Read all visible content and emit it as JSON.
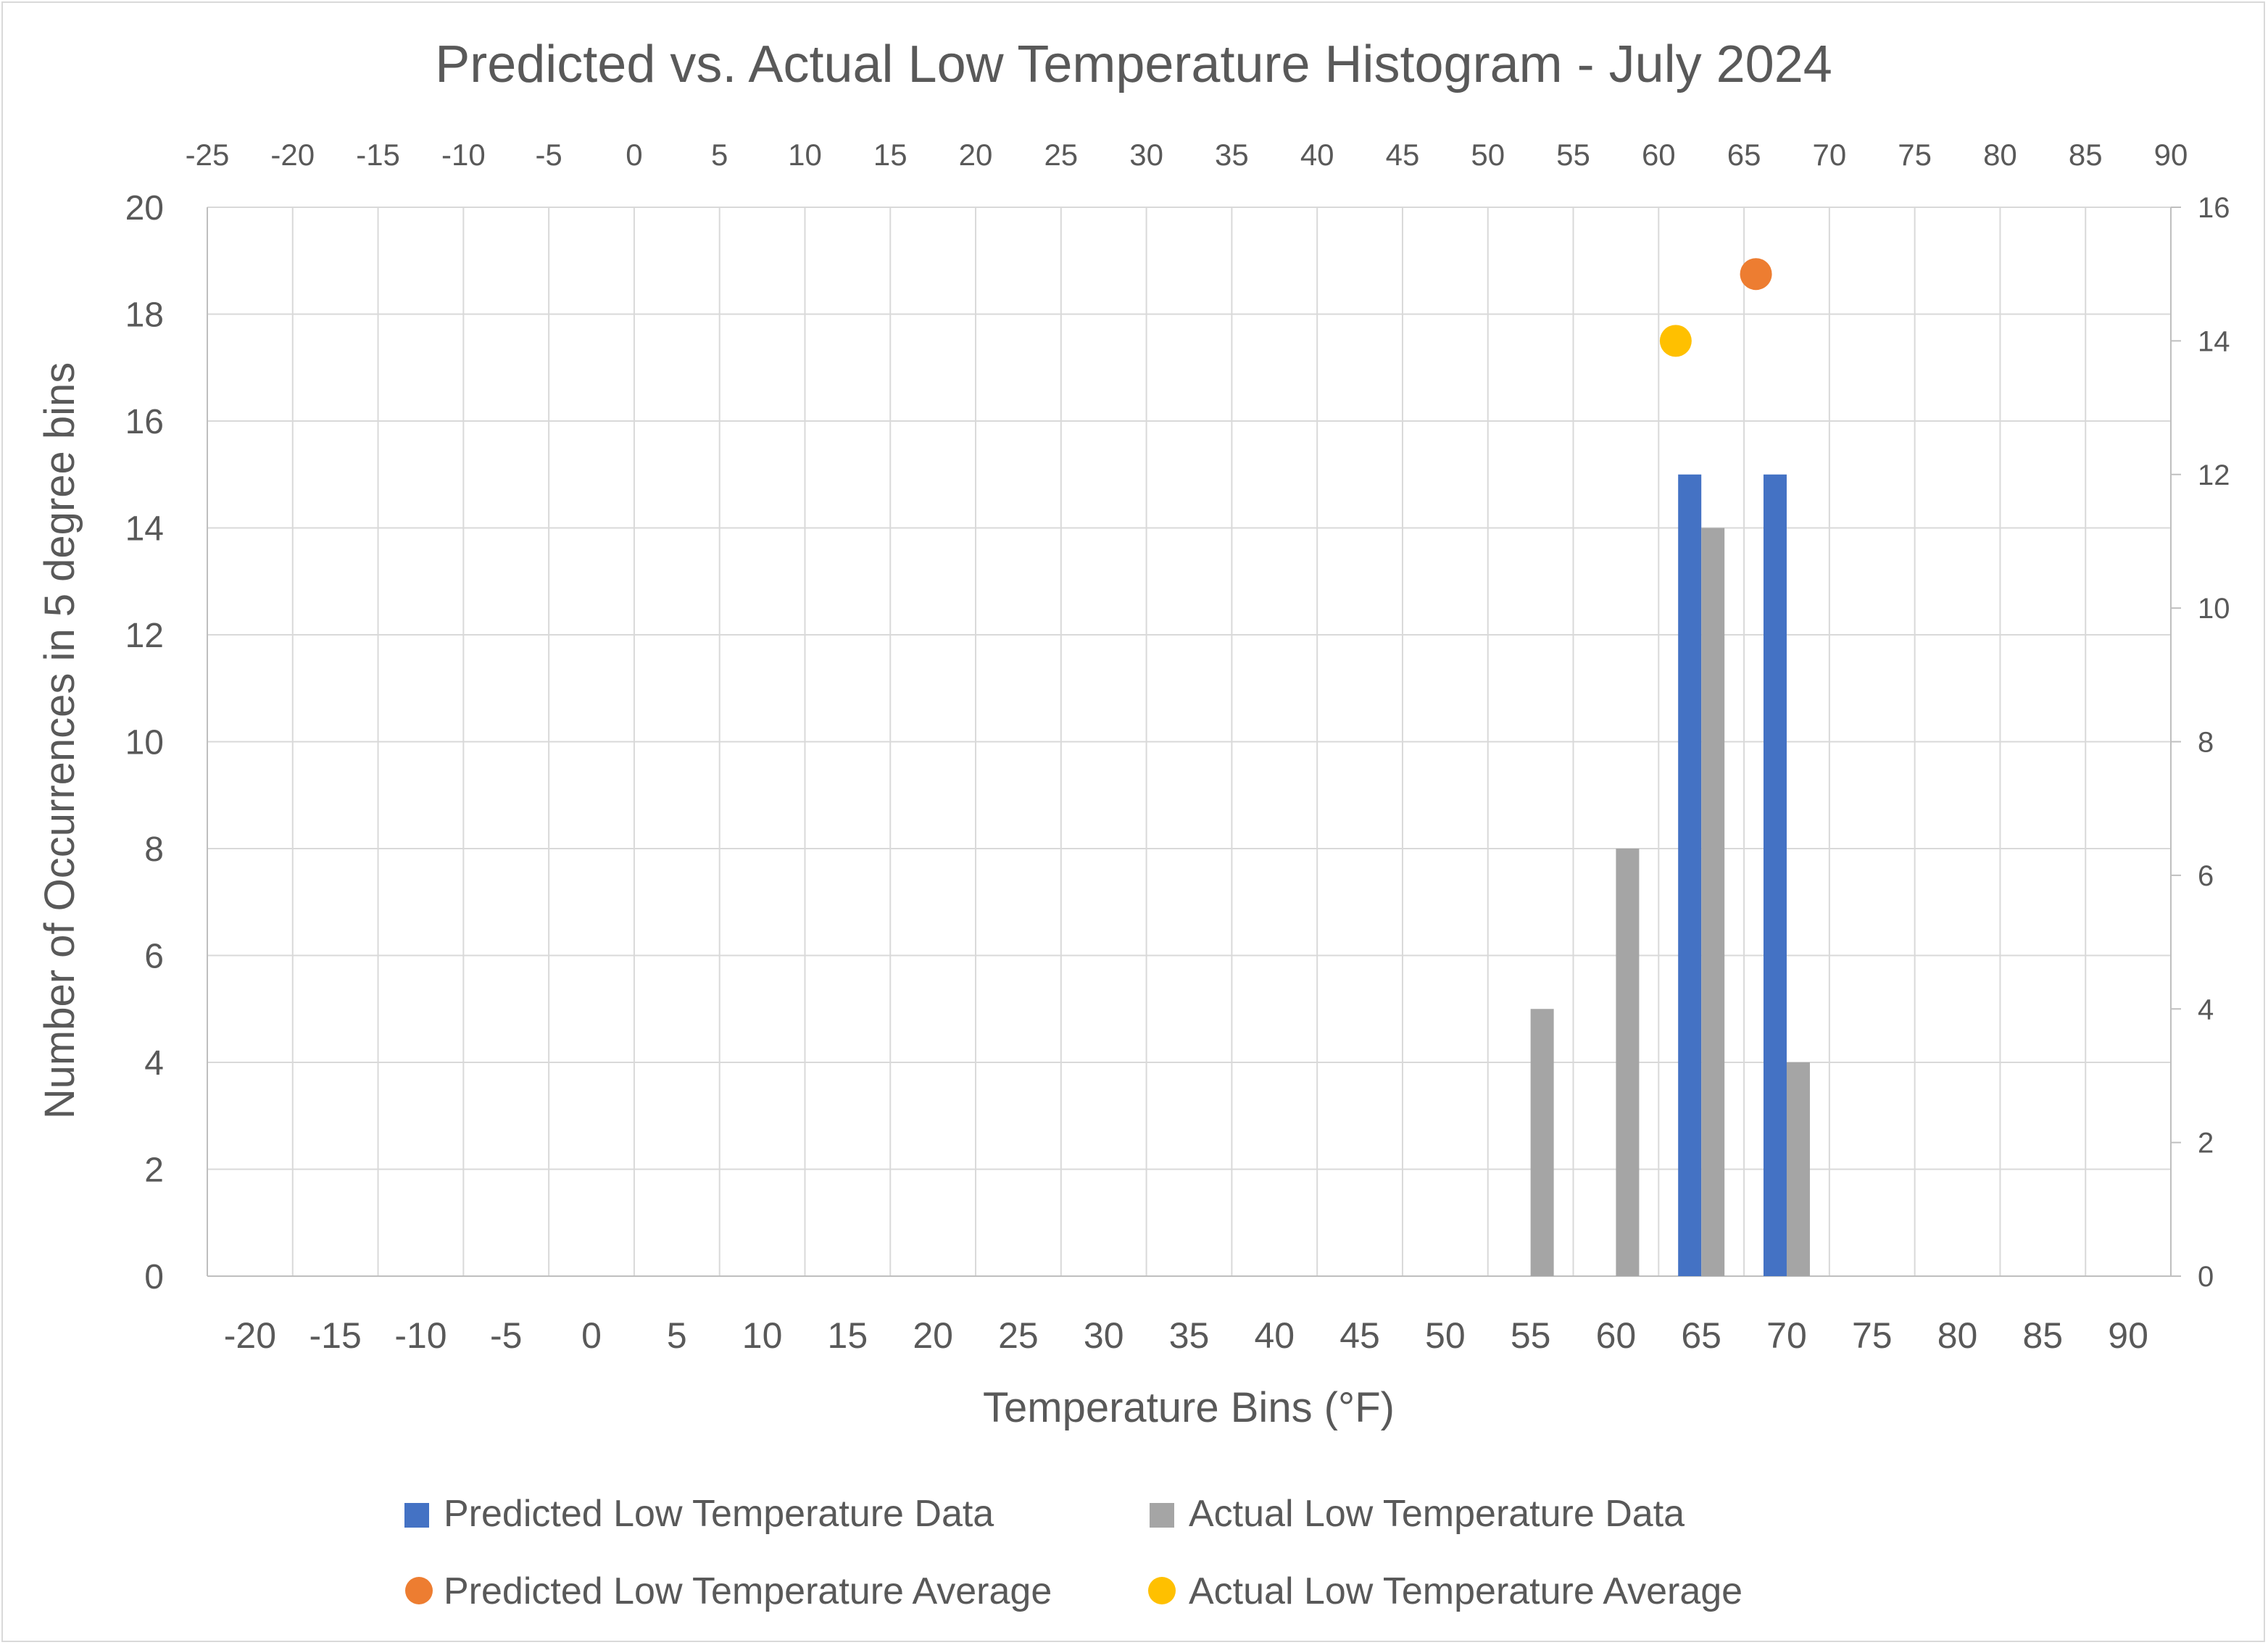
{
  "chart_data": {
    "type": "bar",
    "title": "Predicted vs. Actual Low Temperature Histogram - July 2024",
    "xlabel": "Temperature Bins (°F)",
    "ylabel": "Number of Occurrences in 5 degree bins",
    "categories": [
      "-20",
      "-15",
      "-10",
      "-5",
      "0",
      "5",
      "10",
      "15",
      "20",
      "25",
      "30",
      "35",
      "40",
      "45",
      "50",
      "55",
      "60",
      "65",
      "70",
      "75",
      "80",
      "85",
      "90"
    ],
    "ylim": [
      0,
      20
    ],
    "yticks": [
      "0",
      "2",
      "4",
      "6",
      "8",
      "10",
      "12",
      "14",
      "16",
      "18",
      "20"
    ],
    "secondary_y": {
      "ylim": [
        0,
        16
      ],
      "ticks": [
        "0",
        "2",
        "4",
        "6",
        "8",
        "10",
        "12",
        "14",
        "16"
      ]
    },
    "secondary_x": {
      "xlim": [
        -25,
        90
      ],
      "ticks": [
        "-25",
        "-20",
        "-15",
        "-10",
        "-5",
        "0",
        "5",
        "10",
        "15",
        "20",
        "25",
        "30",
        "35",
        "40",
        "45",
        "50",
        "55",
        "60",
        "65",
        "70",
        "75",
        "80",
        "85",
        "90"
      ]
    },
    "grid": true,
    "legend_position": "bottom",
    "series": [
      {
        "name": "Predicted Low Temperature Data",
        "type": "bar",
        "color": "#4472c4",
        "values": [
          0,
          0,
          0,
          0,
          0,
          0,
          0,
          0,
          0,
          0,
          0,
          0,
          0,
          0,
          0,
          0,
          0,
          15,
          15,
          0,
          0,
          0,
          0
        ]
      },
      {
        "name": "Actual Low Temperature Data",
        "type": "bar",
        "color": "#a5a5a5",
        "values": [
          0,
          0,
          0,
          0,
          0,
          0,
          0,
          0,
          0,
          0,
          0,
          0,
          0,
          0,
          0,
          5,
          8,
          14,
          4,
          0,
          0,
          0,
          0
        ]
      },
      {
        "name": "Predicted Low Temperature Average",
        "type": "scatter",
        "color": "#ed7d31",
        "axis": "secondary",
        "points": [
          {
            "x": 65.7,
            "y": 15
          }
        ]
      },
      {
        "name": "Actual Low Temperature Average",
        "type": "scatter",
        "color": "#ffc000",
        "axis": "secondary",
        "points": [
          {
            "x": 61.0,
            "y": 14
          }
        ]
      }
    ]
  }
}
